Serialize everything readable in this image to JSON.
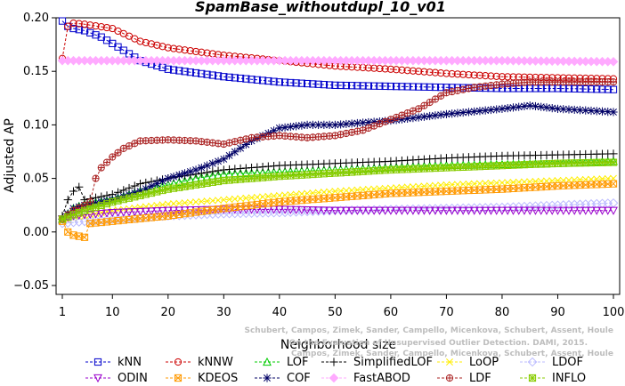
{
  "chart_data": {
    "type": "line",
    "title": "SpamBase_withoutdupl_10_v01",
    "xlabel": "Neighborhood size",
    "ylabel": "Adjusted AP",
    "xlim": [
      1,
      100
    ],
    "ylim": [
      -0.05,
      0.2
    ],
    "xticks": [
      "1",
      "10",
      "20",
      "30",
      "40",
      "50",
      "60",
      "70",
      "80",
      "90",
      "100"
    ],
    "yticks": [
      "−0.05",
      "0.00",
      "0.05",
      "0.10",
      "0.15",
      "0.20"
    ],
    "grid": false,
    "legend_position": "bottom",
    "watermark": [
      "Schubert, Campos, Zimek, Sander, Campello, Micenkova, Schubert, Assent, Houle",
      "On the Evaluation of Unsupervised Outlier Detection. DAMI, 2015.",
      "Campos, Zimek, Sander, Campello, Micenkova, Schubert, Assent, Houle"
    ],
    "series": [
      {
        "name": "kNN",
        "color": "#0000cc",
        "marker": "square",
        "line": "dash",
        "points": [
          [
            1,
            0.197
          ],
          [
            2,
            0.192
          ],
          [
            3,
            0.19
          ],
          [
            5,
            0.188
          ],
          [
            8,
            0.182
          ],
          [
            10,
            0.176
          ],
          [
            15,
            0.16
          ],
          [
            20,
            0.152
          ],
          [
            30,
            0.145
          ],
          [
            40,
            0.14
          ],
          [
            50,
            0.137
          ],
          [
            60,
            0.136
          ],
          [
            70,
            0.135
          ],
          [
            80,
            0.134
          ],
          [
            90,
            0.134
          ],
          [
            100,
            0.133
          ]
        ]
      },
      {
        "name": "kNNW",
        "color": "#cc0000",
        "marker": "circle",
        "line": "dash",
        "points": [
          [
            1,
            0.162
          ],
          [
            2,
            0.192
          ],
          [
            3,
            0.195
          ],
          [
            5,
            0.194
          ],
          [
            10,
            0.19
          ],
          [
            15,
            0.178
          ],
          [
            20,
            0.172
          ],
          [
            30,
            0.165
          ],
          [
            40,
            0.16
          ],
          [
            50,
            0.155
          ],
          [
            60,
            0.152
          ],
          [
            70,
            0.148
          ],
          [
            80,
            0.145
          ],
          [
            90,
            0.144
          ],
          [
            100,
            0.143
          ]
        ]
      },
      {
        "name": "LOF",
        "color": "#00cc00",
        "marker": "triangle",
        "line": "dash",
        "points": [
          [
            1,
            0.012
          ],
          [
            3,
            0.022
          ],
          [
            5,
            0.026
          ],
          [
            10,
            0.03
          ],
          [
            15,
            0.038
          ],
          [
            20,
            0.044
          ],
          [
            25,
            0.05
          ],
          [
            30,
            0.054
          ],
          [
            40,
            0.056
          ],
          [
            50,
            0.058
          ],
          [
            60,
            0.06
          ],
          [
            70,
            0.062
          ],
          [
            80,
            0.063
          ],
          [
            90,
            0.064
          ],
          [
            100,
            0.066
          ]
        ]
      },
      {
        "name": "SimplifiedLOF",
        "color": "#000000",
        "marker": "plus",
        "line": "dash",
        "points": [
          [
            1,
            0.015
          ],
          [
            2,
            0.03
          ],
          [
            3,
            0.038
          ],
          [
            4,
            0.042
          ],
          [
            5,
            0.03
          ],
          [
            10,
            0.035
          ],
          [
            15,
            0.045
          ],
          [
            20,
            0.05
          ],
          [
            30,
            0.058
          ],
          [
            40,
            0.062
          ],
          [
            50,
            0.064
          ],
          [
            60,
            0.066
          ],
          [
            70,
            0.069
          ],
          [
            80,
            0.071
          ],
          [
            90,
            0.072
          ],
          [
            100,
            0.073
          ]
        ]
      },
      {
        "name": "LoOP",
        "color": "#ffee00",
        "marker": "x",
        "line": "dash",
        "points": [
          [
            1,
            0.01
          ],
          [
            5,
            0.015
          ],
          [
            10,
            0.02
          ],
          [
            20,
            0.026
          ],
          [
            30,
            0.03
          ],
          [
            40,
            0.034
          ],
          [
            50,
            0.038
          ],
          [
            60,
            0.041
          ],
          [
            70,
            0.044
          ],
          [
            80,
            0.046
          ],
          [
            90,
            0.048
          ],
          [
            100,
            0.05
          ]
        ]
      },
      {
        "name": "LDOF",
        "color": "#bbbbff",
        "marker": "diamond",
        "line": "dash",
        "points": [
          [
            1,
            0.008
          ],
          [
            10,
            0.012
          ],
          [
            20,
            0.015
          ],
          [
            30,
            0.017
          ],
          [
            40,
            0.018
          ],
          [
            50,
            0.02
          ],
          [
            60,
            0.021
          ],
          [
            70,
            0.022
          ],
          [
            80,
            0.023
          ],
          [
            90,
            0.025
          ],
          [
            100,
            0.027
          ]
        ]
      },
      {
        "name": "ODIN",
        "color": "#9900cc",
        "marker": "triangle-down",
        "line": "dash",
        "points": [
          [
            1,
            0.012
          ],
          [
            3,
            0.015
          ],
          [
            5,
            0.016
          ],
          [
            10,
            0.018
          ],
          [
            20,
            0.02
          ],
          [
            30,
            0.021
          ],
          [
            40,
            0.021
          ],
          [
            50,
            0.02
          ],
          [
            60,
            0.02
          ],
          [
            70,
            0.02
          ],
          [
            80,
            0.02
          ],
          [
            90,
            0.02
          ],
          [
            100,
            0.02
          ]
        ]
      },
      {
        "name": "KDEOS",
        "color": "#ff9900",
        "marker": "square-x",
        "line": "dash",
        "points": [
          [
            1,
            0.01
          ],
          [
            2,
            0.0
          ],
          [
            3,
            -0.003
          ],
          [
            4,
            -0.004
          ],
          [
            5,
            -0.005
          ],
          [
            6,
            0.008
          ],
          [
            8,
            0.009
          ],
          [
            10,
            0.01
          ],
          [
            20,
            0.015
          ],
          [
            30,
            0.022
          ],
          [
            40,
            0.028
          ],
          [
            50,
            0.032
          ],
          [
            60,
            0.036
          ],
          [
            70,
            0.038
          ],
          [
            80,
            0.04
          ],
          [
            90,
            0.043
          ],
          [
            100,
            0.045
          ]
        ]
      },
      {
        "name": "COF",
        "color": "#000066",
        "marker": "asterisk",
        "line": "dash",
        "points": [
          [
            1,
            0.012
          ],
          [
            3,
            0.022
          ],
          [
            5,
            0.025
          ],
          [
            8,
            0.028
          ],
          [
            10,
            0.03
          ],
          [
            15,
            0.038
          ],
          [
            20,
            0.05
          ],
          [
            25,
            0.058
          ],
          [
            30,
            0.068
          ],
          [
            35,
            0.085
          ],
          [
            40,
            0.097
          ],
          [
            45,
            0.1
          ],
          [
            50,
            0.1
          ],
          [
            60,
            0.104
          ],
          [
            70,
            0.11
          ],
          [
            80,
            0.115
          ],
          [
            85,
            0.118
          ],
          [
            90,
            0.115
          ],
          [
            100,
            0.112
          ]
        ]
      },
      {
        "name": "FastABOD",
        "color": "#ffaaff",
        "marker": "diamond-filled",
        "line": "dash",
        "points": [
          [
            1,
            0.16
          ],
          [
            5,
            0.16
          ],
          [
            10,
            0.16
          ],
          [
            20,
            0.16
          ],
          [
            40,
            0.16
          ],
          [
            60,
            0.16
          ],
          [
            80,
            0.16
          ],
          [
            100,
            0.159
          ]
        ]
      },
      {
        "name": "LDF",
        "color": "#aa2222",
        "marker": "circle-plus",
        "line": "dash",
        "points": [
          [
            1,
            0.012
          ],
          [
            3,
            0.02
          ],
          [
            5,
            0.025
          ],
          [
            6,
            0.028
          ],
          [
            7,
            0.05
          ],
          [
            8,
            0.06
          ],
          [
            10,
            0.07
          ],
          [
            12,
            0.078
          ],
          [
            15,
            0.085
          ],
          [
            20,
            0.086
          ],
          [
            25,
            0.085
          ],
          [
            30,
            0.082
          ],
          [
            35,
            0.088
          ],
          [
            40,
            0.09
          ],
          [
            45,
            0.088
          ],
          [
            50,
            0.09
          ],
          [
            55,
            0.095
          ],
          [
            60,
            0.105
          ],
          [
            65,
            0.115
          ],
          [
            70,
            0.13
          ],
          [
            75,
            0.135
          ],
          [
            80,
            0.138
          ],
          [
            85,
            0.14
          ],
          [
            90,
            0.14
          ],
          [
            95,
            0.14
          ],
          [
            100,
            0.14
          ]
        ]
      },
      {
        "name": "INFLO",
        "color": "#88cc00",
        "marker": "square-asterisk",
        "line": "dash",
        "points": [
          [
            1,
            0.012
          ],
          [
            5,
            0.02
          ],
          [
            10,
            0.028
          ],
          [
            20,
            0.04
          ],
          [
            30,
            0.048
          ],
          [
            40,
            0.052
          ],
          [
            50,
            0.055
          ],
          [
            60,
            0.058
          ],
          [
            70,
            0.06
          ],
          [
            80,
            0.062
          ],
          [
            90,
            0.064
          ],
          [
            100,
            0.065
          ]
        ]
      }
    ]
  }
}
